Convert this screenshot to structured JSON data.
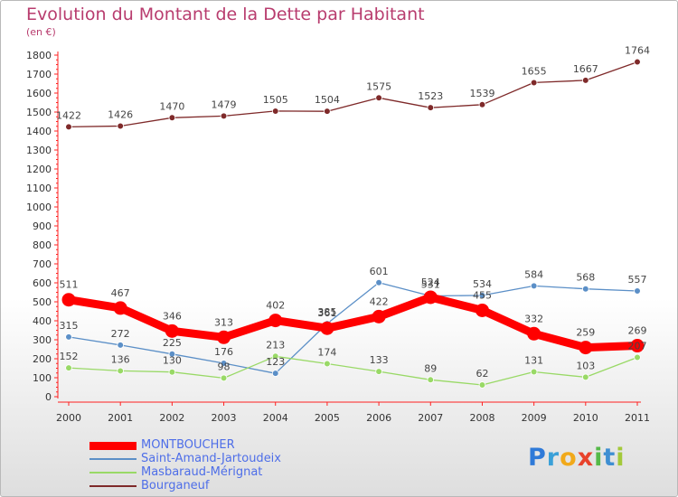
{
  "title": "Evolution du Montant de la Dette par Habitant",
  "subtitle": "(en €)",
  "logo": {
    "text": "Proxiti",
    "letters": [
      "P",
      "r",
      "o",
      "x",
      "i",
      "t",
      "i"
    ]
  },
  "chart_data": {
    "type": "line",
    "title": "Evolution du Montant de la Dette par Habitant",
    "ylabel": "(en €)",
    "xlabel": "",
    "x": [
      "2000",
      "2001",
      "2002",
      "2003",
      "2004",
      "2005",
      "2006",
      "2007",
      "2008",
      "2009",
      "2010",
      "2011"
    ],
    "ylim": [
      0,
      1800
    ],
    "yticks": [
      0,
      100,
      200,
      300,
      400,
      500,
      600,
      700,
      800,
      900,
      1000,
      1100,
      1200,
      1300,
      1400,
      1500,
      1600,
      1700,
      1800
    ],
    "grid": false,
    "legend": "bottom-left",
    "series": [
      {
        "name": "MONTBOUCHER",
        "color": "#ff0000",
        "values": [
          511,
          467,
          346,
          313,
          402,
          361,
          422,
          524,
          455,
          332,
          259,
          269
        ],
        "labels": [
          "511",
          "467",
          "346",
          "313",
          "402",
          "361",
          "422",
          "524",
          "455",
          "332",
          "259",
          "269"
        ]
      },
      {
        "name": "Saint-Amand-Jartoudeix",
        "color": "#5b8fc7",
        "values": [
          315,
          272,
          225,
          176,
          123,
          385,
          601,
          531,
          534,
          584,
          568,
          557
        ],
        "labels": [
          "315",
          "272",
          "225",
          "176",
          "123",
          "385",
          "601",
          "531",
          "534",
          "584",
          "568",
          "557"
        ]
      },
      {
        "name": "Masbaraud-Mérignat",
        "color": "#99d966",
        "values": [
          152,
          136,
          130,
          98,
          213,
          174,
          133,
          89,
          62,
          131,
          103,
          207
        ],
        "labels": [
          "152",
          "136",
          "130",
          "98",
          "213",
          "174",
          "133",
          "89",
          "62",
          "131",
          "103",
          "207"
        ]
      },
      {
        "name": "Bourganeuf",
        "color": "#7f2a2a",
        "values": [
          1422,
          1426,
          1470,
          1479,
          1505,
          1504,
          1575,
          1523,
          1539,
          1655,
          1667,
          1764
        ],
        "labels": [
          "1422",
          "1426",
          "1470",
          "1479",
          "1505",
          "1504",
          "1575",
          "1523",
          "1539",
          "1655",
          "1667",
          "1764"
        ]
      }
    ]
  }
}
